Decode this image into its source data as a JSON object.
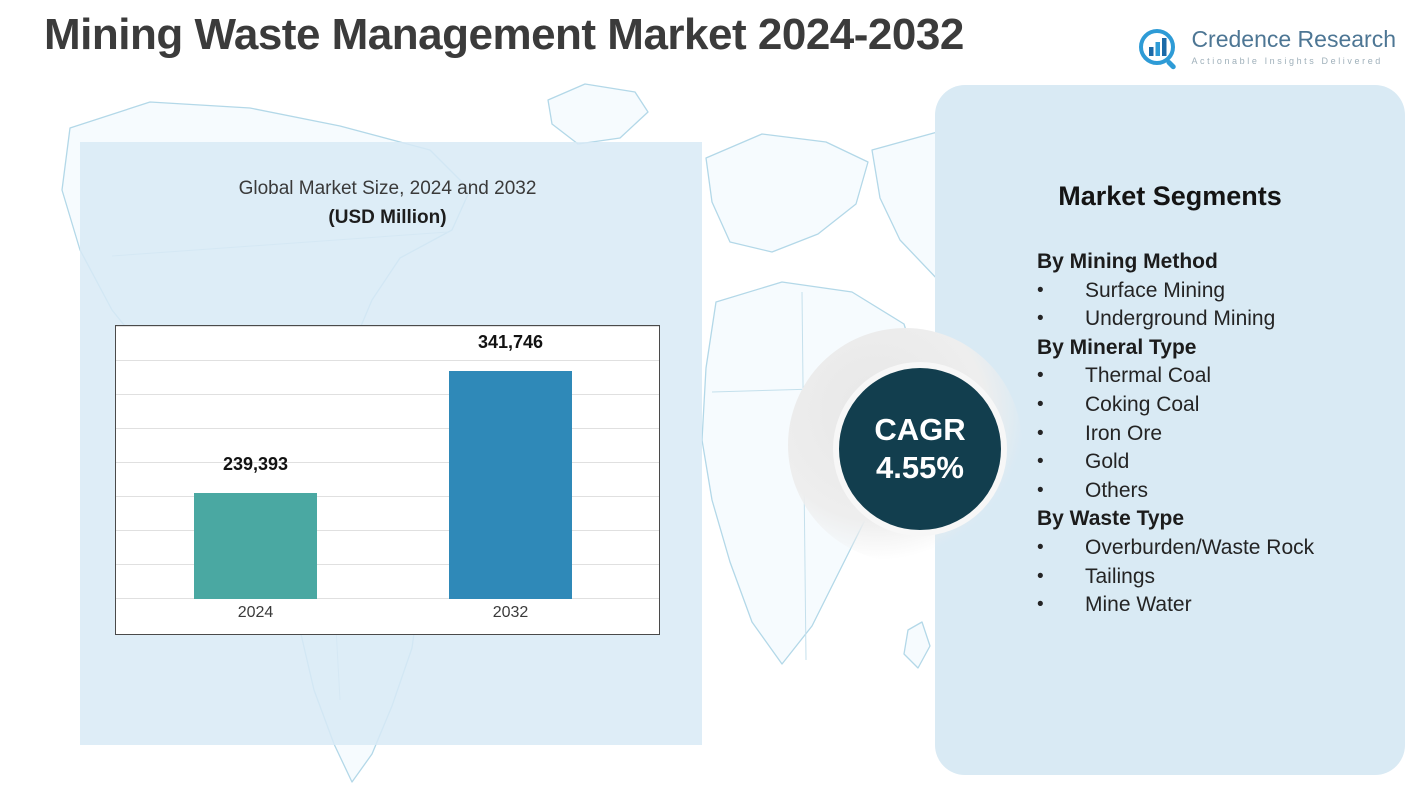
{
  "page": {
    "title": "Mining Waste Management Market 2024-2032"
  },
  "logo": {
    "name": "Credence Research",
    "tagline": "Actionable Insights Delivered",
    "icon": "bar-chart-magnifier-icon",
    "colors": {
      "text": "#4d7694",
      "icon_light_blue": "#2e9bd6",
      "icon_dark_blue": "#1b6aa8"
    }
  },
  "chart_panel": {
    "subtitle_line1": "Global Market Size, 2024 and 2032",
    "subtitle_line2": "(USD Million)"
  },
  "chart_data": {
    "type": "bar",
    "title": "Global Market Size, 2024 and 2032 (USD Million)",
    "categories": [
      "2024",
      "2032"
    ],
    "values": [
      239393,
      341746
    ],
    "value_labels": [
      "239,393",
      "341,746"
    ],
    "xlabel": "",
    "ylabel": "USD Million",
    "ylim": [
      150000,
      380000
    ],
    "grid": true,
    "legend": "none",
    "bar_colors": [
      "#4aa8a2",
      "#2f89b8"
    ]
  },
  "cagr": {
    "label": "CAGR",
    "value": "4.55%",
    "circle_color": "#123e4e"
  },
  "segments": {
    "heading": "Market Segments",
    "panel_color": "#d9eaf4",
    "sections": [
      {
        "title": "By Mining Method",
        "items": [
          "Surface Mining",
          "Underground Mining"
        ]
      },
      {
        "title": "By Mineral Type",
        "items": [
          "Thermal Coal",
          "Coking Coal",
          "Iron Ore",
          "Gold",
          "Others"
        ]
      },
      {
        "title": "By Waste Type",
        "items": [
          "Overburden/Waste Rock",
          "Tailings",
          "Mine Water"
        ]
      }
    ]
  }
}
